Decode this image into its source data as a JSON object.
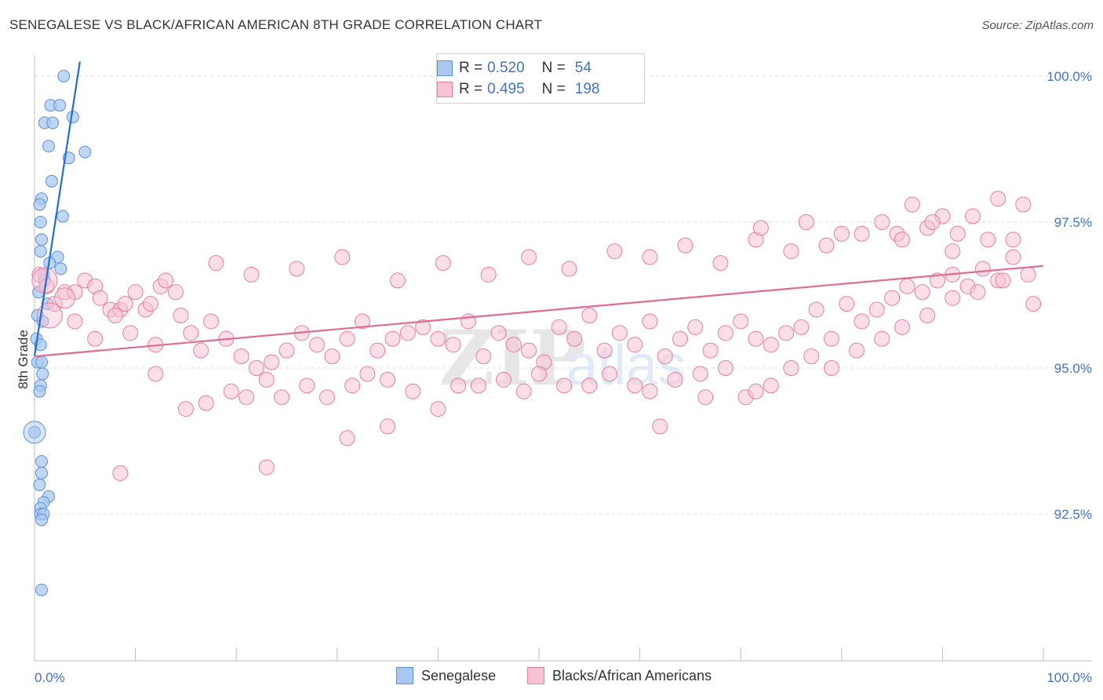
{
  "title": "SENEGALESE VS BLACK/AFRICAN AMERICAN 8TH GRADE CORRELATION CHART",
  "source": "Source: ZipAtlas.com",
  "watermark": {
    "zip": "ZIP",
    "atlas": "atlas"
  },
  "legend": {
    "rows": [
      {
        "r_label": "R =",
        "r_value": "0.520",
        "n_label": "N =",
        "n_value": "54",
        "color": "#a9c8f0",
        "border": "#5b8fd6"
      },
      {
        "r_label": "R =",
        "r_value": "0.495",
        "n_label": "N =",
        "n_value": "198",
        "color": "#f7c2d2",
        "border": "#e87da0"
      }
    ]
  },
  "bottom_legend": [
    {
      "label": "Senegalese",
      "color": "#a9c8f0",
      "border": "#5b8fd6"
    },
    {
      "label": "Blacks/African Americans",
      "color": "#f7c2d2",
      "border": "#e87da0"
    }
  ],
  "chart_data": {
    "type": "scatter",
    "title": "SENEGALESE VS BLACK/AFRICAN AMERICAN 8TH GRADE CORRELATION CHART",
    "xlabel": "",
    "ylabel": "8th Grade",
    "xlim": [
      0,
      100
    ],
    "ylim": [
      90.0,
      100.25
    ],
    "x_tick_labels": [
      "0.0%",
      "100.0%"
    ],
    "y_ticks": [
      92.5,
      95.0,
      97.5,
      100.0
    ],
    "y_tick_labels": [
      "92.5%",
      "95.0%",
      "97.5%",
      "100.0%"
    ],
    "grid": true,
    "series": [
      {
        "name": "Senegalese",
        "color": "#a9c8f0",
        "stroke": "#5b8fd6",
        "line_color": "#1f6fd1",
        "trend": {
          "x": [
            0,
            4.5
          ],
          "y": [
            95.2,
            100.25
          ]
        },
        "points": [
          [
            2.9,
            100.0
          ],
          [
            1.6,
            99.5
          ],
          [
            2.5,
            99.5
          ],
          [
            3.8,
            99.3
          ],
          [
            1.0,
            99.2
          ],
          [
            1.8,
            99.2
          ],
          [
            1.4,
            98.8
          ],
          [
            5.0,
            98.7
          ],
          [
            3.4,
            98.6
          ],
          [
            1.7,
            98.2
          ],
          [
            0.7,
            97.9
          ],
          [
            0.5,
            97.8
          ],
          [
            2.8,
            97.6
          ],
          [
            0.6,
            97.5
          ],
          [
            0.7,
            97.2
          ],
          [
            0.6,
            97.0
          ],
          [
            2.3,
            96.9
          ],
          [
            1.5,
            96.8
          ],
          [
            2.6,
            96.7
          ],
          [
            0.9,
            96.6
          ],
          [
            1.0,
            96.5
          ],
          [
            0.4,
            96.3
          ],
          [
            1.3,
            96.1
          ],
          [
            0.3,
            95.9
          ],
          [
            0.8,
            95.8
          ],
          [
            0.2,
            95.5
          ],
          [
            0.6,
            95.4
          ],
          [
            0.3,
            95.1
          ],
          [
            0.7,
            95.1
          ],
          [
            0.8,
            94.9
          ],
          [
            0.6,
            94.7
          ],
          [
            0.5,
            94.6
          ],
          [
            0.0,
            93.9
          ],
          [
            0.7,
            93.4
          ],
          [
            0.7,
            93.2
          ],
          [
            0.5,
            93.0
          ],
          [
            1.4,
            92.8
          ],
          [
            0.9,
            92.7
          ],
          [
            0.6,
            92.6
          ],
          [
            0.6,
            92.5
          ],
          [
            0.9,
            92.5
          ],
          [
            0.7,
            92.4
          ],
          [
            0.7,
            91.2
          ]
        ]
      },
      {
        "name": "Blacks/African Americans",
        "color": "#f7c2d2",
        "stroke": "#e87da0",
        "line_color": "#e06b95",
        "trend": {
          "x": [
            0,
            100
          ],
          "y": [
            95.2,
            96.75
          ]
        },
        "points": [
          [
            0.5,
            96.6
          ],
          [
            1.2,
            96.4
          ],
          [
            2.0,
            96.1
          ],
          [
            3.0,
            96.3
          ],
          [
            4.0,
            96.3
          ],
          [
            5.0,
            96.5
          ],
          [
            6.0,
            96.4
          ],
          [
            6.5,
            96.2
          ],
          [
            7.5,
            96.0
          ],
          [
            8.5,
            96.0
          ],
          [
            9.0,
            96.1
          ],
          [
            10.0,
            96.3
          ],
          [
            11.0,
            96.0
          ],
          [
            11.5,
            96.1
          ],
          [
            12.5,
            96.4
          ],
          [
            13.0,
            96.5
          ],
          [
            14.0,
            96.3
          ],
          [
            4.0,
            95.8
          ],
          [
            6.0,
            95.5
          ],
          [
            8.0,
            95.9
          ],
          [
            9.5,
            95.6
          ],
          [
            12.0,
            95.4
          ],
          [
            14.5,
            95.9
          ],
          [
            15.5,
            95.6
          ],
          [
            16.5,
            95.3
          ],
          [
            17.5,
            95.8
          ],
          [
            19.0,
            95.5
          ],
          [
            20.5,
            95.2
          ],
          [
            22.0,
            95.0
          ],
          [
            23.5,
            95.1
          ],
          [
            25.0,
            95.3
          ],
          [
            26.5,
            95.6
          ],
          [
            28.0,
            95.4
          ],
          [
            29.5,
            95.2
          ],
          [
            31.0,
            95.5
          ],
          [
            32.5,
            95.8
          ],
          [
            34.0,
            95.3
          ],
          [
            35.5,
            95.5
          ],
          [
            37.0,
            95.6
          ],
          [
            38.5,
            95.7
          ],
          [
            40.0,
            95.5
          ],
          [
            41.5,
            95.4
          ],
          [
            43.0,
            95.8
          ],
          [
            44.5,
            95.2
          ],
          [
            46.0,
            95.6
          ],
          [
            47.5,
            95.4
          ],
          [
            49.0,
            95.3
          ],
          [
            50.5,
            95.1
          ],
          [
            52.0,
            95.7
          ],
          [
            53.5,
            95.5
          ],
          [
            55.0,
            95.9
          ],
          [
            56.5,
            95.3
          ],
          [
            58.0,
            95.6
          ],
          [
            59.5,
            95.4
          ],
          [
            61.0,
            95.8
          ],
          [
            62.5,
            95.2
          ],
          [
            64.0,
            95.5
          ],
          [
            65.5,
            95.7
          ],
          [
            67.0,
            95.3
          ],
          [
            68.5,
            95.6
          ],
          [
            70.0,
            95.8
          ],
          [
            71.5,
            95.5
          ],
          [
            73.0,
            95.4
          ],
          [
            74.5,
            95.6
          ],
          [
            76.0,
            95.7
          ],
          [
            77.5,
            96.0
          ],
          [
            79.0,
            95.5
          ],
          [
            80.5,
            96.1
          ],
          [
            82.0,
            95.8
          ],
          [
            83.5,
            96.0
          ],
          [
            85.0,
            96.2
          ],
          [
            86.5,
            96.4
          ],
          [
            88.0,
            96.3
          ],
          [
            89.5,
            96.5
          ],
          [
            91.0,
            96.6
          ],
          [
            92.5,
            96.4
          ],
          [
            94.0,
            96.7
          ],
          [
            95.5,
            96.5
          ],
          [
            97.0,
            96.9
          ],
          [
            98.5,
            96.6
          ],
          [
            12.0,
            94.9
          ],
          [
            15.0,
            94.3
          ],
          [
            17.0,
            94.4
          ],
          [
            19.5,
            94.6
          ],
          [
            21.0,
            94.5
          ],
          [
            23.0,
            94.8
          ],
          [
            24.5,
            94.5
          ],
          [
            27.0,
            94.7
          ],
          [
            29.0,
            94.5
          ],
          [
            31.5,
            94.7
          ],
          [
            33.0,
            94.9
          ],
          [
            35.0,
            94.8
          ],
          [
            37.5,
            94.6
          ],
          [
            40.0,
            94.3
          ],
          [
            42.0,
            94.7
          ],
          [
            44.0,
            94.7
          ],
          [
            46.5,
            94.8
          ],
          [
            48.5,
            94.6
          ],
          [
            50.0,
            94.9
          ],
          [
            52.5,
            94.7
          ],
          [
            55.0,
            94.7
          ],
          [
            57.0,
            94.9
          ],
          [
            59.5,
            94.7
          ],
          [
            61.0,
            94.6
          ],
          [
            63.5,
            94.8
          ],
          [
            66.0,
            94.9
          ],
          [
            68.5,
            95.0
          ],
          [
            70.5,
            94.5
          ],
          [
            73.0,
            94.7
          ],
          [
            75.0,
            95.0
          ],
          [
            77.0,
            95.2
          ],
          [
            79.0,
            95.0
          ],
          [
            81.5,
            95.3
          ],
          [
            84.0,
            95.5
          ],
          [
            86.0,
            95.7
          ],
          [
            88.5,
            95.9
          ],
          [
            91.0,
            96.2
          ],
          [
            93.5,
            96.3
          ],
          [
            96.0,
            96.5
          ],
          [
            99.0,
            96.1
          ],
          [
            18.0,
            96.8
          ],
          [
            21.5,
            96.6
          ],
          [
            26.0,
            96.7
          ],
          [
            30.5,
            96.9
          ],
          [
            36.0,
            96.5
          ],
          [
            40.5,
            96.8
          ],
          [
            45.0,
            96.6
          ],
          [
            49.0,
            96.9
          ],
          [
            53.0,
            96.7
          ],
          [
            57.5,
            97.0
          ],
          [
            61.0,
            96.9
          ],
          [
            64.5,
            97.1
          ],
          [
            68.0,
            96.8
          ],
          [
            71.5,
            97.2
          ],
          [
            75.0,
            97.0
          ],
          [
            78.5,
            97.1
          ],
          [
            82.0,
            97.3
          ],
          [
            85.5,
            97.3
          ],
          [
            88.5,
            97.4
          ],
          [
            91.5,
            97.3
          ],
          [
            94.5,
            97.2
          ],
          [
            97.0,
            97.2
          ],
          [
            87.0,
            97.8
          ],
          [
            90.0,
            97.6
          ],
          [
            93.0,
            97.6
          ],
          [
            95.5,
            97.9
          ],
          [
            98.0,
            97.8
          ],
          [
            72.0,
            97.4
          ],
          [
            76.5,
            97.5
          ],
          [
            80.0,
            97.3
          ],
          [
            84.0,
            97.5
          ],
          [
            86.0,
            97.2
          ],
          [
            89.0,
            97.5
          ],
          [
            91.0,
            97.0
          ],
          [
            8.5,
            93.2
          ],
          [
            23.0,
            93.3
          ],
          [
            31.0,
            93.8
          ],
          [
            35.0,
            94.0
          ],
          [
            62.0,
            94.0
          ],
          [
            66.5,
            94.5
          ],
          [
            71.5,
            94.6
          ]
        ]
      }
    ]
  }
}
